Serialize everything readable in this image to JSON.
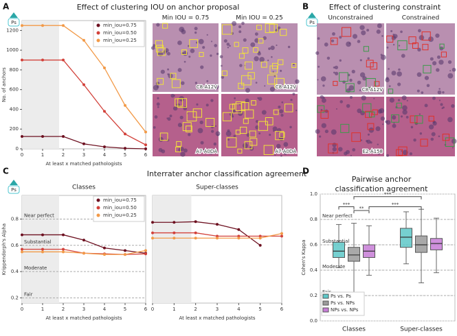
{
  "panel_labels": [
    "A",
    "B",
    "C",
    "D"
  ],
  "badges": [
    "Ps",
    "Ps",
    "Ps"
  ],
  "image_grids": [
    {
      "title": "Effect of clustering IOU on anchor proposal",
      "col_headers": [
        "Min IOU = 0.75",
        "Min IOU = 0.25"
      ],
      "row_labels": [
        "C8-A12V",
        "A7-A0DA"
      ]
    },
    {
      "title": "Effect of clustering constraint",
      "col_headers": [
        "Unconstrained",
        "Constrained"
      ],
      "row_labels": [
        "C8-A12V",
        "E2-A158"
      ]
    }
  ],
  "chart_data": [
    {
      "type": "line",
      "ylabel": "No. of anchors",
      "xlabel": "At least x matched pathologists",
      "x": [
        0,
        1,
        2,
        3,
        4,
        5,
        6
      ],
      "xlim": [
        0,
        6
      ],
      "xticks": [
        0,
        1,
        2,
        3,
        4,
        5,
        6
      ],
      "ylim": [
        0,
        1300
      ],
      "yticks": [
        0,
        200,
        400,
        600,
        800,
        1000,
        1200
      ],
      "shade_x": [
        0,
        1.8
      ],
      "legend": "upper right",
      "series": [
        {
          "name": "min_iou=0.75",
          "color": "#6d1020",
          "values": [
            125,
            125,
            125,
            50,
            20,
            5,
            0
          ]
        },
        {
          "name": "min_iou=0.50",
          "color": "#d2413a",
          "values": [
            900,
            900,
            900,
            650,
            380,
            150,
            40
          ]
        },
        {
          "name": "min_iou=0.25",
          "color": "#f29a48",
          "values": [
            1250,
            1250,
            1250,
            1100,
            820,
            440,
            170
          ]
        }
      ]
    },
    {
      "type": "line",
      "suptitle": "Interrater anchor classification agreement",
      "title": "Classes",
      "ylabel": "Krippendorph's Alpha",
      "xlabel": "At least x matched pathologists",
      "x": [
        0,
        1,
        2,
        3,
        4,
        5,
        6
      ],
      "xlim": [
        0,
        6
      ],
      "xticks": [
        0,
        1,
        2,
        3,
        4,
        5,
        6
      ],
      "ylim": [
        0.16,
        0.98
      ],
      "yticks": [
        0.2,
        0.4,
        0.6,
        0.8
      ],
      "reference_lines": [
        {
          "value": 0.8,
          "label": "Near perfect"
        },
        {
          "value": 0.6,
          "label": "Substantial"
        },
        {
          "value": 0.4,
          "label": "Moderate"
        },
        {
          "value": 0.2,
          "label": "Fair"
        }
      ],
      "shade_x": [
        0,
        1.8
      ],
      "legend": "upper right",
      "series": [
        {
          "name": "min_iou=0.75",
          "color": "#6d1020",
          "values": [
            0.68,
            0.68,
            0.68,
            0.64,
            0.58,
            0.56,
            0.54
          ]
        },
        {
          "name": "min_iou=0.50",
          "color": "#d2413a",
          "values": [
            0.57,
            0.57,
            0.57,
            0.54,
            0.535,
            0.53,
            0.535
          ]
        },
        {
          "name": "min_iou=0.25",
          "color": "#f29a48",
          "values": [
            0.55,
            0.55,
            0.55,
            0.54,
            0.53,
            0.53,
            0.56
          ]
        }
      ]
    },
    {
      "type": "line",
      "title": "Super-classes",
      "xlabel": "At least x matched pathologists",
      "x": [
        0,
        1,
        2,
        3,
        4,
        5,
        6
      ],
      "xlim": [
        0,
        6
      ],
      "xticks": [
        0,
        1,
        2,
        3,
        4,
        5,
        6
      ],
      "ylim": [
        0.16,
        0.98
      ],
      "shade_x": [
        0,
        1.8
      ],
      "series": [
        {
          "name": "min_iou=0.75",
          "color": "#6d1020",
          "values": [
            0.775,
            0.775,
            0.78,
            0.76,
            0.72,
            0.6,
            null
          ]
        },
        {
          "name": "min_iou=0.50",
          "color": "#d2413a",
          "values": [
            0.695,
            0.695,
            0.695,
            0.67,
            0.67,
            0.67,
            0.67
          ]
        },
        {
          "name": "min_iou=0.25",
          "color": "#f29a48",
          "values": [
            0.655,
            0.655,
            0.655,
            0.655,
            0.655,
            0.655,
            0.69
          ]
        }
      ]
    },
    {
      "type": "box",
      "title": [
        "Pairwise anchor",
        "classification agreement"
      ],
      "ylabel": "Cohen's Kappa",
      "categories": [
        "Classes",
        "Super-classes"
      ],
      "ylim": [
        0,
        1.0
      ],
      "yticks": [
        {
          "value": 0,
          "label": "0.0"
        },
        0.2,
        0.4,
        0.6,
        0.8,
        {
          "value": 1,
          "label": "1.0"
        }
      ],
      "reference_lines": [
        {
          "value": 0.8,
          "label": "Near perfect"
        },
        {
          "value": 0.6,
          "label": "Substantial"
        },
        {
          "value": 0.4,
          "label": "Moderate"
        },
        {
          "value": 0.2,
          "label": "Fair"
        }
      ],
      "legend": "lower left",
      "significance": [
        "***",
        "**",
        "***",
        "***"
      ],
      "series": [
        {
          "name": "Ps vs. Ps",
          "color": "#5ec8c8",
          "boxes": [
            {
              "whislo": 0.42,
              "q1": 0.5,
              "med": 0.55,
              "q3": 0.62,
              "whishi": 0.76
            },
            {
              "whislo": 0.45,
              "q1": 0.58,
              "med": 0.66,
              "q3": 0.73,
              "whishi": 0.86
            }
          ]
        },
        {
          "name": "Ps vs. NPs",
          "color": "#9a9a9a",
          "boxes": [
            {
              "whislo": 0.22,
              "q1": 0.47,
              "med": 0.52,
              "q3": 0.58,
              "whishi": 0.77
            },
            {
              "whislo": 0.3,
              "q1": 0.54,
              "med": 0.6,
              "q3": 0.67,
              "whishi": 0.88
            }
          ]
        },
        {
          "name": "NPs vs. NPs",
          "color": "#c77dd6",
          "boxes": [
            {
              "whislo": 0.36,
              "q1": 0.5,
              "med": 0.55,
              "q3": 0.6,
              "whishi": 0.75
            },
            {
              "whislo": 0.38,
              "q1": 0.56,
              "med": 0.61,
              "q3": 0.65,
              "whishi": 0.81
            }
          ]
        }
      ]
    }
  ]
}
